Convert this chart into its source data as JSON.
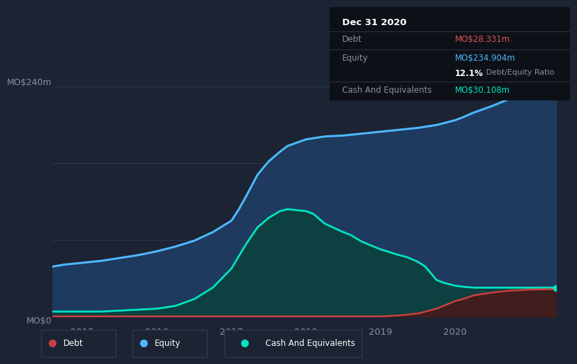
{
  "background_color": "#1c2333",
  "plot_bg_color": "#1c2333",
  "title_box": {
    "date": "Dec 31 2020",
    "debt_label": "Debt",
    "debt_value": "MO$28.331m",
    "debt_color": "#e05252",
    "equity_label": "Equity",
    "equity_value": "MO$234.904m",
    "equity_color": "#4db8ff",
    "ratio_bold": "12.1%",
    "ratio_text": " Debt/Equity Ratio",
    "cash_label": "Cash And Equivalents",
    "cash_value": "MO$30.108m",
    "cash_color": "#00e5c0"
  },
  "ylabel_top": "MO$240m",
  "ylabel_bottom": "MO$0",
  "xlim": [
    2014.6,
    2021.35
  ],
  "ylim": [
    -8,
    268
  ],
  "xticks": [
    2015,
    2016,
    2017,
    2018,
    2019,
    2020
  ],
  "yticks": [
    0,
    80,
    160,
    240
  ],
  "ytick_top": 240,
  "ytick_bottom": 0,
  "equity_color": "#4db8ff",
  "equity_fill": "#1e3a5f",
  "debt_color": "#c94040",
  "debt_fill": "#4a1818",
  "cash_color": "#00e5c0",
  "cash_fill": "#0d4040",
  "equity_data": {
    "x": [
      2014.6,
      2014.75,
      2015.0,
      2015.25,
      2015.5,
      2015.75,
      2016.0,
      2016.25,
      2016.5,
      2016.75,
      2017.0,
      2017.1,
      2017.2,
      2017.35,
      2017.5,
      2017.65,
      2017.75,
      2018.0,
      2018.25,
      2018.5,
      2018.75,
      2019.0,
      2019.25,
      2019.5,
      2019.75,
      2019.85,
      2020.0,
      2020.1,
      2020.25,
      2020.5,
      2020.75,
      2021.0,
      2021.2,
      2021.35
    ],
    "y": [
      52,
      54,
      56,
      58,
      61,
      64,
      68,
      73,
      79,
      88,
      100,
      112,
      126,
      148,
      162,
      172,
      178,
      185,
      188,
      189,
      191,
      193,
      195,
      197,
      200,
      202,
      205,
      208,
      213,
      220,
      228,
      233,
      235,
      235
    ]
  },
  "cash_data": {
    "x": [
      2014.6,
      2014.75,
      2015.0,
      2015.25,
      2015.5,
      2015.75,
      2016.0,
      2016.25,
      2016.5,
      2016.75,
      2017.0,
      2017.1,
      2017.2,
      2017.35,
      2017.5,
      2017.65,
      2017.75,
      2018.0,
      2018.1,
      2018.25,
      2018.5,
      2018.6,
      2018.75,
      2019.0,
      2019.25,
      2019.35,
      2019.5,
      2019.6,
      2019.75,
      2019.85,
      2020.0,
      2020.1,
      2020.25,
      2020.5,
      2020.75,
      2021.0,
      2021.2,
      2021.35
    ],
    "y": [
      5,
      5,
      5,
      5,
      6,
      7,
      8,
      11,
      18,
      30,
      50,
      63,
      76,
      93,
      103,
      110,
      112,
      110,
      107,
      97,
      88,
      85,
      78,
      70,
      64,
      62,
      57,
      52,
      38,
      35,
      32,
      31,
      30,
      30,
      30,
      30,
      30,
      30
    ]
  },
  "debt_data": {
    "x": [
      2014.6,
      2015.0,
      2016.0,
      2017.0,
      2018.0,
      2018.75,
      2019.0,
      2019.25,
      2019.5,
      2019.75,
      2020.0,
      2020.1,
      2020.25,
      2020.5,
      2020.75,
      2021.0,
      2021.2,
      2021.35
    ],
    "y": [
      0,
      0,
      0,
      0,
      0,
      0,
      0,
      1,
      3,
      8,
      16,
      18,
      22,
      25,
      27,
      28,
      28.3,
      28.3
    ]
  },
  "legend": [
    {
      "label": "Debt",
      "color": "#c94040"
    },
    {
      "label": "Equity",
      "color": "#4db8ff"
    },
    {
      "label": "Cash And Equivalents",
      "color": "#00e5c0"
    }
  ]
}
